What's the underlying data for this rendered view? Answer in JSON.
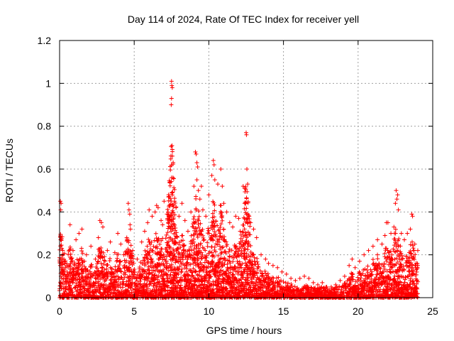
{
  "chart_data": {
    "type": "scatter",
    "title": "Day 114 of 2024, Rate Of TEC Index for receiver yell",
    "xlabel": "GPS time / hours",
    "ylabel": "ROTI / TECUs",
    "xlim": [
      0,
      25
    ],
    "ylim": [
      0,
      1.2
    ],
    "xticks": [
      0,
      5,
      10,
      15,
      20,
      25
    ],
    "yticks": [
      0,
      0.2,
      0.4,
      0.6,
      0.8,
      1,
      1.2
    ],
    "xtick_labels": [
      "0",
      "5",
      "10",
      "15",
      "20",
      "25"
    ],
    "ytick_labels": [
      "0",
      "0.2",
      "0.4",
      "0.6",
      "0.8",
      "1",
      "1.2"
    ],
    "grid": true,
    "marker": "+",
    "color": "#ff0000",
    "series": [
      {
        "name": "ROTI",
        "points": [
          [
            0.05,
            0.45
          ],
          [
            0.1,
            0.44
          ],
          [
            0.08,
            0.41
          ],
          [
            0.15,
            0.23
          ],
          [
            0.2,
            0.18
          ],
          [
            0.3,
            0.12
          ],
          [
            0.5,
            0.15
          ],
          [
            0.7,
            0.34
          ],
          [
            0.9,
            0.22
          ],
          [
            1.1,
            0.27
          ],
          [
            1.3,
            0.3
          ],
          [
            1.5,
            0.32
          ],
          [
            1.8,
            0.2
          ],
          [
            2.1,
            0.24
          ],
          [
            2.4,
            0.18
          ],
          [
            2.6,
            0.28
          ],
          [
            2.7,
            0.36
          ],
          [
            2.8,
            0.35
          ],
          [
            2.9,
            0.33
          ],
          [
            3.2,
            0.22
          ],
          [
            3.4,
            0.26
          ],
          [
            3.7,
            0.21
          ],
          [
            3.9,
            0.3
          ],
          [
            4.1,
            0.25
          ],
          [
            4.3,
            0.2
          ],
          [
            4.5,
            0.28
          ],
          [
            4.6,
            0.44
          ],
          [
            4.65,
            0.41
          ],
          [
            4.7,
            0.39
          ],
          [
            4.72,
            0.34
          ],
          [
            4.75,
            0.32
          ],
          [
            4.9,
            0.22
          ],
          [
            5.2,
            0.18
          ],
          [
            5.5,
            0.26
          ],
          [
            5.7,
            0.31
          ],
          [
            5.9,
            0.35
          ],
          [
            6.0,
            0.41
          ],
          [
            6.2,
            0.38
          ],
          [
            6.4,
            0.4
          ],
          [
            6.5,
            0.43
          ],
          [
            6.6,
            0.42
          ],
          [
            6.8,
            0.36
          ],
          [
            6.9,
            0.34
          ],
          [
            7.0,
            0.45
          ],
          [
            7.2,
            0.39
          ],
          [
            7.3,
            0.47
          ],
          [
            7.4,
            0.54
          ],
          [
            7.5,
            1.01
          ],
          [
            7.52,
            0.99
          ],
          [
            7.55,
            0.98
          ],
          [
            7.5,
            0.93
          ],
          [
            7.48,
            0.9
          ],
          [
            7.53,
            0.71
          ],
          [
            7.6,
            0.56
          ],
          [
            7.55,
            0.49
          ],
          [
            7.7,
            0.45
          ],
          [
            7.8,
            0.42
          ],
          [
            8.0,
            0.38
          ],
          [
            8.2,
            0.44
          ],
          [
            8.4,
            0.36
          ],
          [
            8.6,
            0.31
          ],
          [
            8.8,
            0.4
          ],
          [
            9.0,
            0.52
          ],
          [
            9.1,
            0.68
          ],
          [
            9.15,
            0.67
          ],
          [
            9.2,
            0.63
          ],
          [
            9.25,
            0.61
          ],
          [
            9.2,
            0.55
          ],
          [
            9.3,
            0.5
          ],
          [
            9.4,
            0.46
          ],
          [
            9.5,
            0.52
          ],
          [
            9.6,
            0.41
          ],
          [
            9.8,
            0.38
          ],
          [
            10.0,
            0.48
          ],
          [
            10.2,
            0.57
          ],
          [
            10.3,
            0.64
          ],
          [
            10.35,
            0.62
          ],
          [
            10.4,
            0.55
          ],
          [
            10.6,
            0.53
          ],
          [
            10.8,
            0.6
          ],
          [
            10.9,
            0.52
          ],
          [
            11.0,
            0.44
          ],
          [
            11.2,
            0.4
          ],
          [
            11.4,
            0.35
          ],
          [
            11.6,
            0.33
          ],
          [
            11.8,
            0.38
          ],
          [
            12.0,
            0.37
          ],
          [
            12.1,
            0.31
          ],
          [
            12.3,
            0.52
          ],
          [
            12.4,
            0.51
          ],
          [
            12.5,
            0.77
          ],
          [
            12.52,
            0.76
          ],
          [
            12.55,
            0.6
          ],
          [
            12.6,
            0.53
          ],
          [
            12.7,
            0.38
          ],
          [
            12.8,
            0.35
          ],
          [
            13.0,
            0.32
          ],
          [
            13.2,
            0.28
          ],
          [
            13.5,
            0.2
          ],
          [
            13.8,
            0.18
          ],
          [
            14.0,
            0.16
          ],
          [
            14.3,
            0.15
          ],
          [
            14.6,
            0.14
          ],
          [
            14.9,
            0.12
          ],
          [
            15.2,
            0.11
          ],
          [
            15.5,
            0.09
          ],
          [
            15.8,
            0.08
          ],
          [
            16.1,
            0.09
          ],
          [
            16.4,
            0.1
          ],
          [
            16.7,
            0.09
          ],
          [
            17.0,
            0.07
          ],
          [
            17.3,
            0.06
          ],
          [
            17.6,
            0.07
          ],
          [
            17.9,
            0.05
          ],
          [
            18.2,
            0.05
          ],
          [
            18.5,
            0.06
          ],
          [
            18.8,
            0.08
          ],
          [
            19.1,
            0.1
          ],
          [
            19.4,
            0.15
          ],
          [
            19.6,
            0.18
          ],
          [
            19.8,
            0.14
          ],
          [
            20.1,
            0.17
          ],
          [
            20.4,
            0.2
          ],
          [
            20.7,
            0.22
          ],
          [
            21.0,
            0.24
          ],
          [
            21.3,
            0.27
          ],
          [
            21.6,
            0.25
          ],
          [
            21.8,
            0.29
          ],
          [
            21.9,
            0.35
          ],
          [
            22.0,
            0.35
          ],
          [
            22.2,
            0.3
          ],
          [
            22.4,
            0.33
          ],
          [
            22.5,
            0.44
          ],
          [
            22.55,
            0.5
          ],
          [
            22.6,
            0.46
          ],
          [
            22.65,
            0.48
          ],
          [
            22.7,
            0.41
          ],
          [
            22.9,
            0.3
          ],
          [
            23.1,
            0.27
          ],
          [
            23.3,
            0.3
          ],
          [
            23.5,
            0.32
          ],
          [
            23.6,
            0.39
          ],
          [
            23.65,
            0.38
          ],
          [
            23.8,
            0.25
          ],
          [
            24.0,
            0.22
          ],
          [
            24.0,
            0.15
          ]
        ]
      }
    ]
  }
}
